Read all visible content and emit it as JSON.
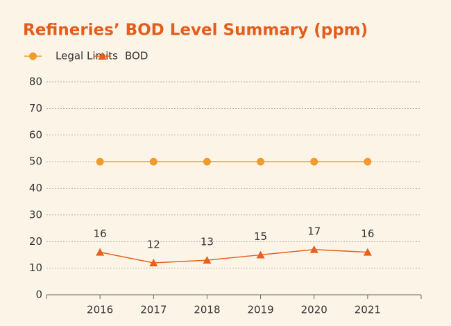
{
  "chart_data": {
    "type": "line",
    "title": "Refineries’ BOD Level Summary (ppm)",
    "categories": [
      "2016",
      "2017",
      "2018",
      "2019",
      "2020",
      "2021"
    ],
    "series": [
      {
        "name": "Legal Limits",
        "color": "#f39a2b",
        "marker": "circle",
        "values": [
          50,
          50,
          50,
          50,
          50,
          50
        ]
      },
      {
        "name": "BOD",
        "color": "#e8601c",
        "marker": "triangle",
        "values": [
          16,
          12,
          13,
          15,
          17,
          16
        ],
        "data_labels": true
      }
    ],
    "ylim": [
      0,
      80
    ],
    "yticks": [
      0,
      10,
      20,
      30,
      40,
      50,
      60,
      70,
      80
    ],
    "grid": true,
    "legend": "top-left"
  }
}
